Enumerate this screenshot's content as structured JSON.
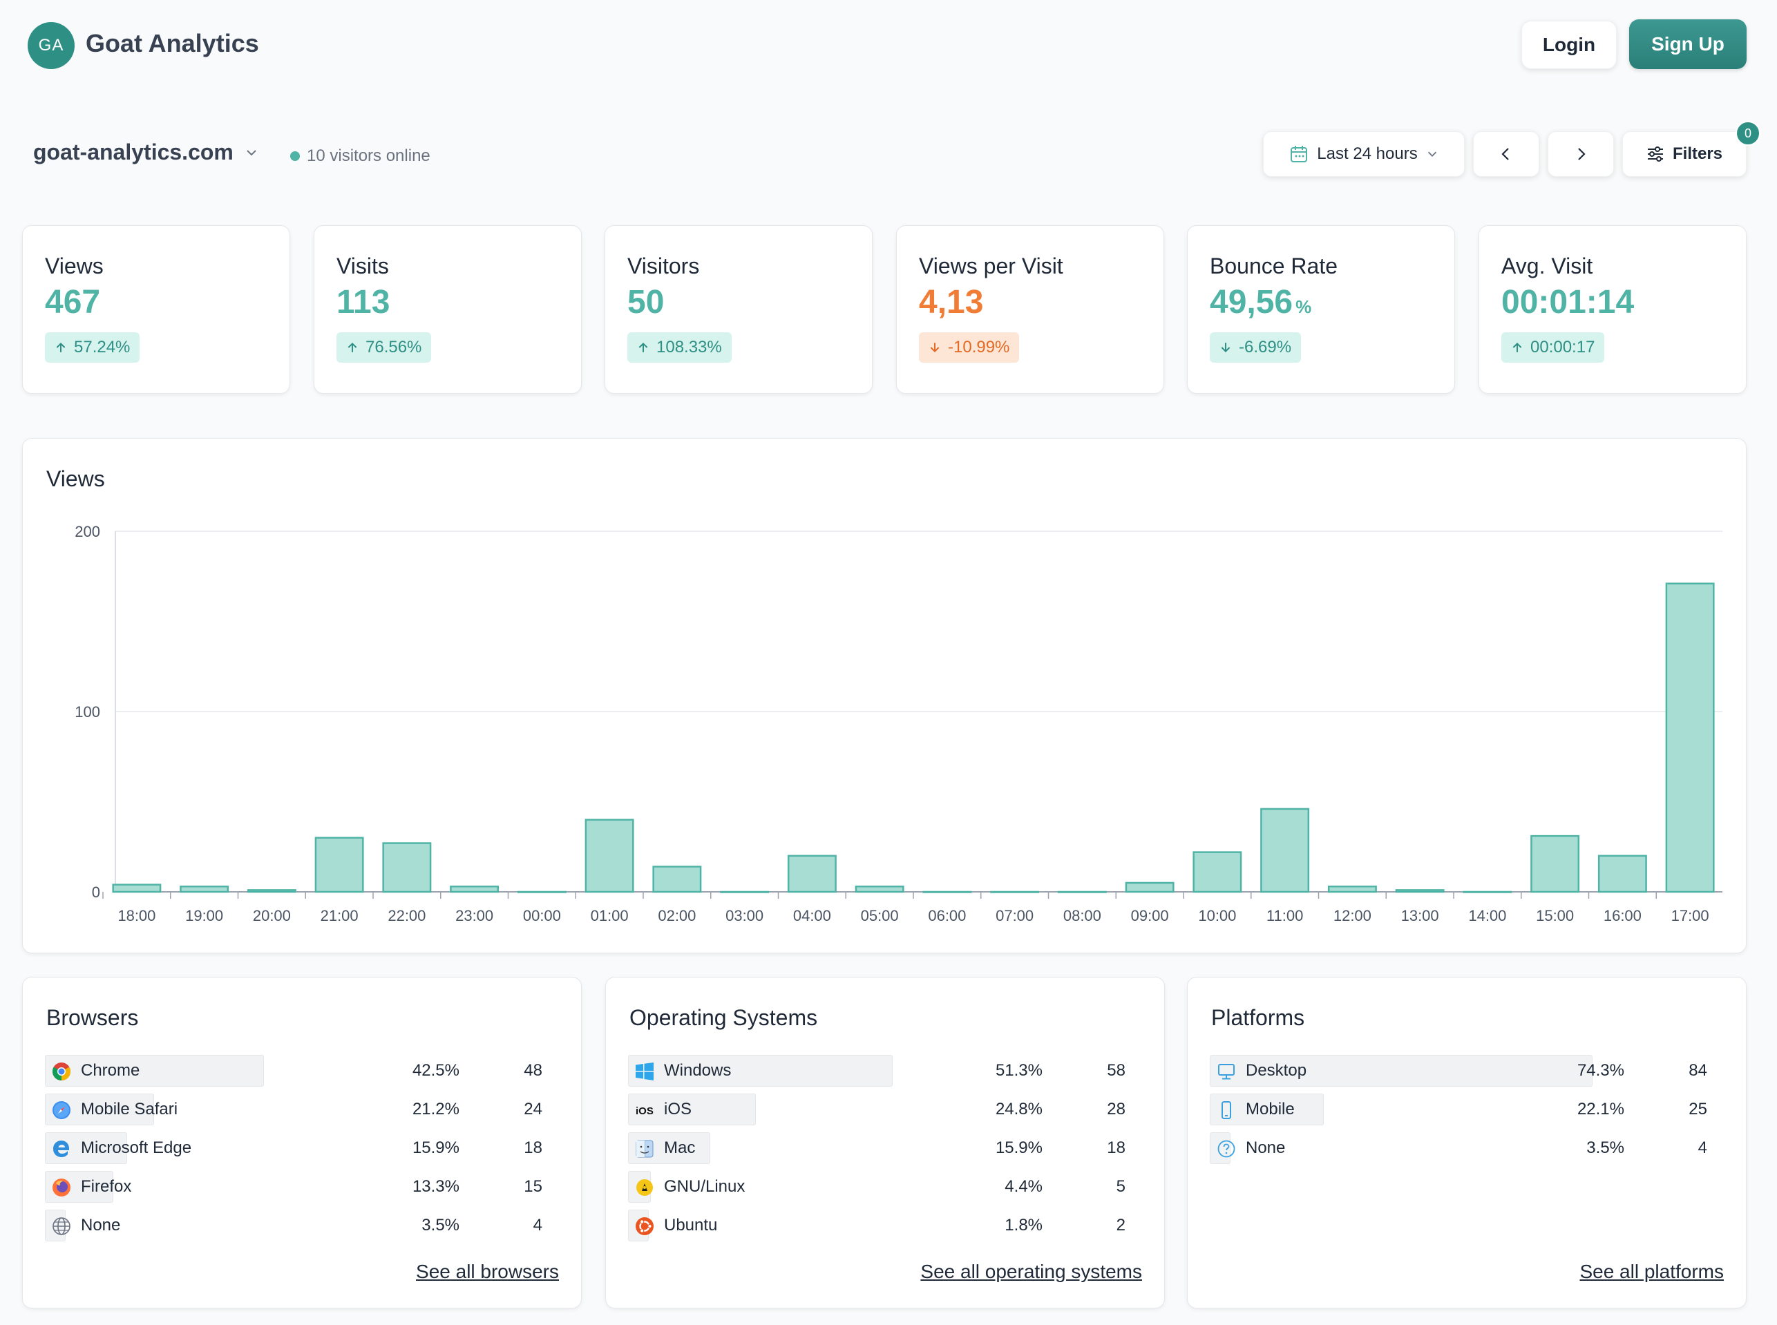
{
  "header": {
    "logo_initials": "GA",
    "brand": "Goat Analytics",
    "login_label": "Login",
    "signup_label": "Sign Up"
  },
  "toolbar": {
    "site": "goat-analytics.com",
    "online_text": "10 visitors online",
    "date_range": "Last 24 hours",
    "filters_label": "Filters",
    "filters_count": "0"
  },
  "stats": [
    {
      "label": "Views",
      "value": "467",
      "unit": "",
      "change": "57.24%",
      "direction": "up",
      "tone": "positive"
    },
    {
      "label": "Visits",
      "value": "113",
      "unit": "",
      "change": "76.56%",
      "direction": "up",
      "tone": "positive"
    },
    {
      "label": "Visitors",
      "value": "50",
      "unit": "",
      "change": "108.33%",
      "direction": "up",
      "tone": "positive"
    },
    {
      "label": "Views per Visit",
      "value": "4,13",
      "unit": "",
      "change": "-10.99%",
      "direction": "down",
      "tone": "negative"
    },
    {
      "label": "Bounce Rate",
      "value": "49,56",
      "unit": "%",
      "change": "-6.69%",
      "direction": "down",
      "tone": "positive"
    },
    {
      "label": "Avg. Visit",
      "value": "00:01:14",
      "unit": "",
      "change": "00:00:17",
      "direction": "up",
      "tone": "positive"
    }
  ],
  "chart": {
    "title": "Views"
  },
  "chart_data": {
    "type": "bar",
    "title": "Views",
    "xlabel": "",
    "ylabel": "",
    "ylim": [
      0,
      200
    ],
    "yticks": [
      0,
      100,
      200
    ],
    "grid": true,
    "categories": [
      "18:00",
      "19:00",
      "20:00",
      "21:00",
      "22:00",
      "23:00",
      "00:00",
      "01:00",
      "02:00",
      "03:00",
      "04:00",
      "05:00",
      "06:00",
      "07:00",
      "08:00",
      "09:00",
      "10:00",
      "11:00",
      "12:00",
      "13:00",
      "14:00",
      "15:00",
      "16:00",
      "17:00"
    ],
    "values": [
      4,
      3,
      1,
      30,
      27,
      3,
      0,
      40,
      14,
      0,
      20,
      3,
      0,
      0,
      0,
      5,
      22,
      46,
      3,
      1,
      0,
      31,
      20,
      171
    ]
  },
  "colors": {
    "accent": "#4fb3a5",
    "accent_dark": "#2e8f84",
    "negative": "#f07c35",
    "bar_fill": "#a8ddd3",
    "bar_stroke": "#4fb3a5"
  },
  "browsers": {
    "title": "Browsers",
    "see_all": "See all browsers",
    "rows": [
      {
        "name": "Chrome",
        "icon": "chrome-icon",
        "pct": "42.5%",
        "share": 0.425,
        "count": "48"
      },
      {
        "name": "Mobile Safari",
        "icon": "safari-icon",
        "pct": "21.2%",
        "share": 0.212,
        "count": "24"
      },
      {
        "name": "Microsoft Edge",
        "icon": "edge-icon",
        "pct": "15.9%",
        "share": 0.159,
        "count": "18"
      },
      {
        "name": "Firefox",
        "icon": "firefox-icon",
        "pct": "13.3%",
        "share": 0.133,
        "count": "15"
      },
      {
        "name": "None",
        "icon": "globe-icon",
        "pct": "3.5%",
        "share": 0.035,
        "count": "4"
      }
    ]
  },
  "os": {
    "title": "Operating Systems",
    "see_all": "See all operating systems",
    "rows": [
      {
        "name": "Windows",
        "icon": "windows-icon",
        "pct": "51.3%",
        "share": 0.513,
        "count": "58"
      },
      {
        "name": "iOS",
        "icon": "ios-icon",
        "icon_text": "iOS",
        "pct": "24.8%",
        "share": 0.248,
        "count": "28"
      },
      {
        "name": "Mac",
        "icon": "mac-icon",
        "pct": "15.9%",
        "share": 0.159,
        "count": "18"
      },
      {
        "name": "GNU/Linux",
        "icon": "linux-icon",
        "pct": "4.4%",
        "share": 0.044,
        "count": "5"
      },
      {
        "name": "Ubuntu",
        "icon": "ubuntu-icon",
        "pct": "1.8%",
        "share": 0.018,
        "count": "2"
      }
    ]
  },
  "platforms": {
    "title": "Platforms",
    "see_all": "See all platforms",
    "rows": [
      {
        "name": "Desktop",
        "icon": "desktop-icon",
        "pct": "74.3%",
        "share": 0.743,
        "count": "84"
      },
      {
        "name": "Mobile",
        "icon": "mobile-icon",
        "pct": "22.1%",
        "share": 0.221,
        "count": "25"
      },
      {
        "name": "None",
        "icon": "question-icon",
        "pct": "3.5%",
        "share": 0.035,
        "count": "4"
      }
    ]
  }
}
